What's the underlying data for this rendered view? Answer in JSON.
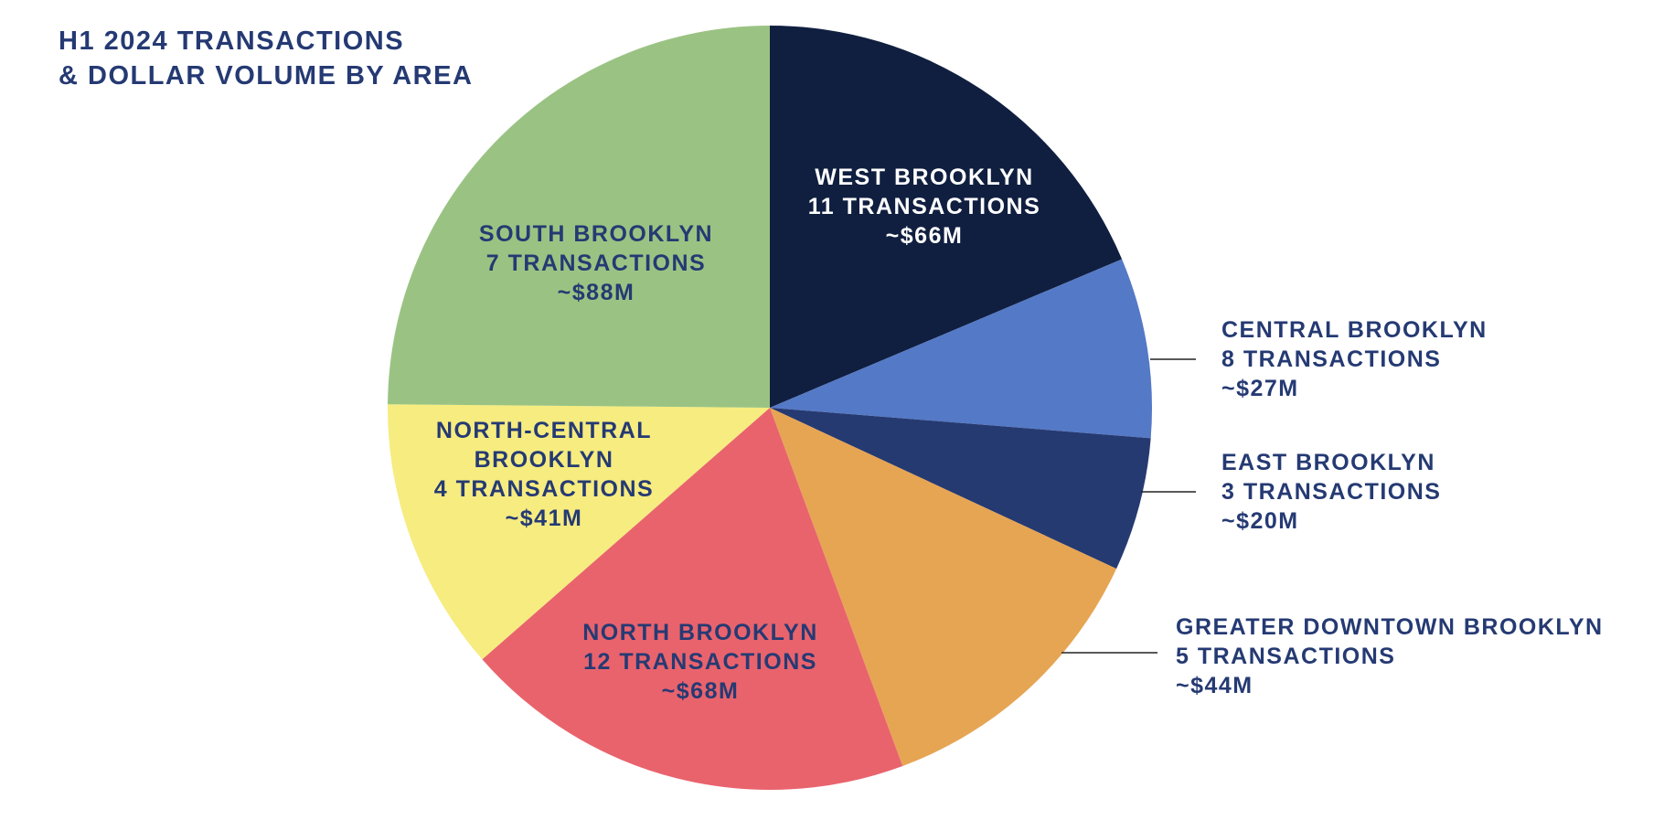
{
  "chart_data": {
    "type": "pie",
    "title_lines": [
      "H1 2024 TRANSACTIONS",
      "& DOLLAR VOLUME BY AREA"
    ],
    "categories": [
      "WEST BROOKLYN",
      "CENTRAL BROOKLYN",
      "EAST BROOKLYN",
      "GREATER DOWNTOWN BROOKLYN",
      "NORTH BROOKLYN",
      "NORTH-CENTRAL BROOKLYN",
      "SOUTH BROOKLYN"
    ],
    "transactions": [
      "11 TRANSACTIONS",
      "8 TRANSACTIONS",
      "3 TRANSACTIONS",
      "5 TRANSACTIONS",
      "12 TRANSACTIONS",
      "4 TRANSACTIONS",
      "7 TRANSACTIONS"
    ],
    "values": [
      66,
      27,
      20,
      44,
      68,
      41,
      88
    ],
    "value_labels": [
      "~$66M",
      "~$27M",
      "~$20M",
      "~$44M",
      "~$68M",
      "~$41M",
      "~$88M"
    ],
    "colors": [
      "#101f40",
      "#5479c6",
      "#263a72",
      "#e6a553",
      "#e9636d",
      "#f6ec80",
      "#9ac383"
    ]
  }
}
